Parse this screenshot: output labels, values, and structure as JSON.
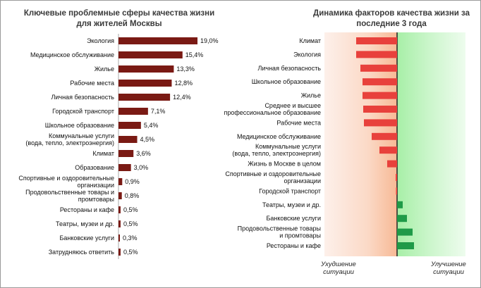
{
  "chart_data": [
    {
      "type": "bar",
      "orientation": "horizontal",
      "title_lines": [
        "Ключевые проблемные сферы качества жизни",
        "для жителей Москвы"
      ],
      "categories": [
        [
          "Экология"
        ],
        [
          "Медицинское обслуживание"
        ],
        [
          "Жилье"
        ],
        [
          "Рабочие места"
        ],
        [
          "Личная безопасность"
        ],
        [
          "Городской транспорт"
        ],
        [
          "Школьное образование"
        ],
        [
          "Коммунальные услуги",
          "(вода, тепло, электроэнергия)"
        ],
        [
          "Климат"
        ],
        [
          "Образование"
        ],
        [
          "Спортивные и оздоровительные",
          "организации"
        ],
        [
          "Продовольственные товары и",
          "промтовары"
        ],
        [
          "Рестораны и кафе"
        ],
        [
          "Театры, музеи и др."
        ],
        [
          "Банковские услуги"
        ],
        [
          "Затрудняюсь ответить"
        ]
      ],
      "values": [
        19.0,
        15.4,
        13.3,
        12.8,
        12.4,
        7.1,
        5.4,
        4.5,
        3.6,
        3.0,
        0.9,
        0.8,
        0.5,
        0.5,
        0.3,
        0.5
      ],
      "value_labels": [
        "19,0%",
        "15,4%",
        "13,3%",
        "12,8%",
        "12,4%",
        "7,1%",
        "5,4%",
        "4,5%",
        "3,6%",
        "3,0%",
        "0,9%",
        "0,8%",
        "0,5%",
        "0,5%",
        "0,3%",
        "0,5%"
      ],
      "bar_color": "#7a1a14",
      "unit": "%"
    },
    {
      "type": "bar",
      "orientation": "horizontal-diverging",
      "title_lines": [
        "Динамика факторов качества жизни за",
        "последние 3 года"
      ],
      "categories": [
        [
          "Климат"
        ],
        [
          "Экология"
        ],
        [
          "Личная безопасность"
        ],
        [
          "Школьное образование"
        ],
        [
          "Жилье"
        ],
        [
          "Среднее и высшее",
          "профессиональное образование"
        ],
        [
          "Рабочие места"
        ],
        [
          "Медицинское обслуживание"
        ],
        [
          "Коммунальные услуги",
          "(вода, тепло, электроэнергия)"
        ],
        [
          "Жизнь в Москве в целом"
        ],
        [
          "Спортивные и оздоровительные",
          "организации"
        ],
        [
          "Городской транспорт"
        ],
        [
          "Театры, музеи и др."
        ],
        [
          "Банковские услуги"
        ],
        [
          "Продовольственные товары",
          "и промтовары"
        ],
        [
          "Рестораны и кафе"
        ]
      ],
      "values": [
        -58,
        -58,
        -52,
        -49,
        -49,
        -48,
        -47,
        -36,
        -25,
        -14,
        -2,
        -1,
        8,
        14,
        22,
        24
      ],
      "value_scale": "relative, unlabeled (negative = worsening, positive = improvement)",
      "xlim": [
        -60,
        30
      ],
      "negative_color": "#e8413c",
      "positive_color": "#1f9a48",
      "footer_left": [
        "Ухудшение",
        "ситуации"
      ],
      "footer_right": [
        "Улучшение",
        "ситуации"
      ]
    }
  ]
}
